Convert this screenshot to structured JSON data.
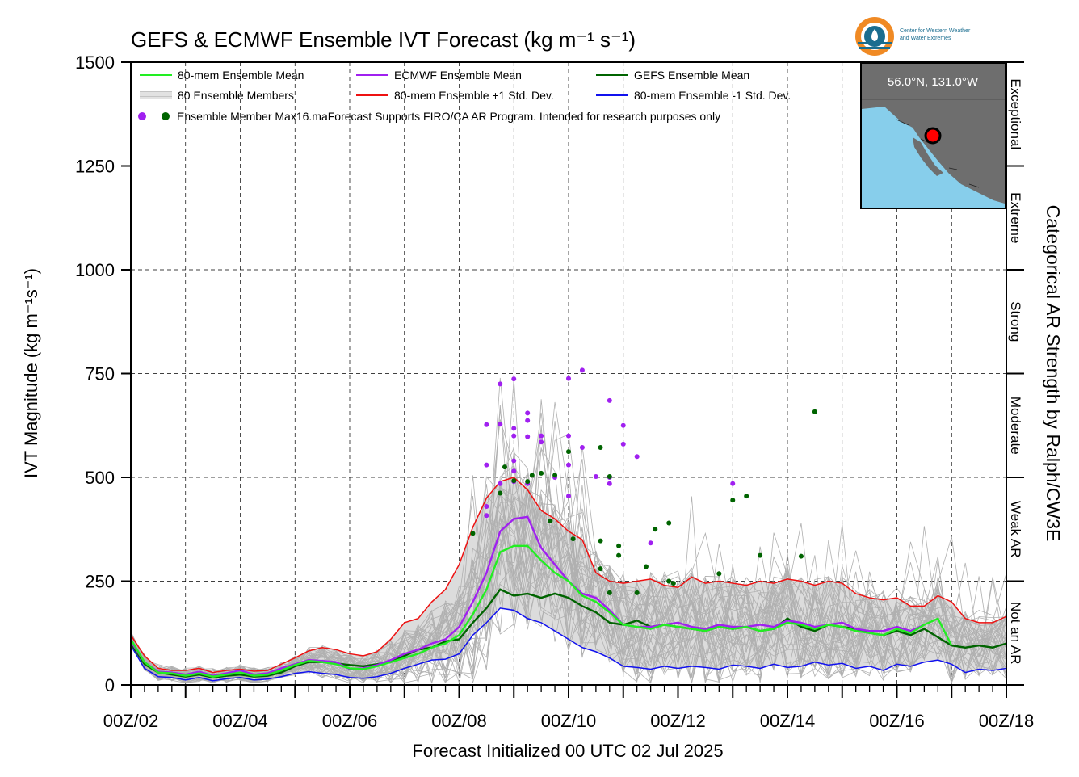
{
  "chart_data": {
    "type": "line",
    "title": "GEFS & ECMWF Ensemble IVT Forecast (kg m⁻¹ s⁻¹)",
    "xlabel": "Forecast Initialized 00 UTC 02 Jul 2025",
    "ylabel": "IVT Magnitude (kg m⁻¹s⁻¹)",
    "ylim": [
      0,
      1500
    ],
    "xlim": [
      0,
      384
    ],
    "x_unit": "forecast hour from 00Z/02",
    "yticks": [
      "0",
      "250",
      "500",
      "750",
      "1000",
      "1250",
      "1500"
    ],
    "xticks": [
      "00Z/02",
      "00Z/04",
      "00Z/06",
      "00Z/08",
      "00Z/10",
      "00Z/12",
      "00Z/14",
      "00Z/16",
      "00Z/18"
    ],
    "grid": true,
    "legend_position": "top-left",
    "legend": [
      {
        "label": "80-mem Ensemble Mean",
        "color": "#22ee22",
        "kind": "line"
      },
      {
        "label": "ECMWF Ensemble Mean",
        "color": "#a020f0",
        "kind": "line"
      },
      {
        "label": "GEFS Ensemble Mean",
        "color": "#006400",
        "kind": "line"
      },
      {
        "label": "80 Ensemble Members",
        "color": "#b0b0b0",
        "kind": "multiline"
      },
      {
        "label": "80-mem Ensemble +1 Std. Dev.",
        "color": "#ee1111",
        "kind": "line"
      },
      {
        "label": "80-mem Ensemble -1 Std. Dev.",
        "color": "#1111ee",
        "kind": "line"
      }
    ],
    "legend_dots_label": "Ensemble Member Max",
    "note": "16.maForecast Supports FIRO/CA AR Program. Intended for research purposes only",
    "category_title": "Categorical AR Strength by Ralph/CW3E",
    "categories": [
      {
        "label": "Not an AR",
        "range": [
          0,
          250
        ]
      },
      {
        "label": "Weak AR",
        "range": [
          250,
          500
        ]
      },
      {
        "label": "Moderate",
        "range": [
          500,
          750
        ]
      },
      {
        "label": "Strong",
        "range": [
          750,
          1000
        ]
      },
      {
        "label": "Extreme",
        "range": [
          1000,
          1250
        ]
      },
      {
        "label": "Exceptional",
        "range": [
          1250,
          1500
        ]
      }
    ],
    "inset_label": "56.0°N, 131.0°W",
    "logo_text": [
      "Center for Western Weather",
      "and Water Extremes"
    ],
    "series": [
      {
        "name": "80-mem Ensemble Mean",
        "color": "#22ee22",
        "x": [
          0,
          6,
          12,
          18,
          24,
          30,
          36,
          42,
          48,
          54,
          60,
          66,
          72,
          78,
          84,
          90,
          96,
          102,
          108,
          114,
          120,
          126,
          132,
          138,
          144,
          150,
          156,
          162,
          168,
          174,
          180,
          186,
          192,
          198,
          204,
          210,
          216,
          222,
          228,
          234,
          240,
          246,
          252,
          258,
          264,
          270,
          276,
          282,
          288,
          294,
          300,
          306,
          312,
          318,
          324,
          330,
          336,
          342,
          348,
          354,
          360
        ],
        "y": [
          110,
          55,
          30,
          28,
          22,
          28,
          20,
          25,
          30,
          22,
          25,
          35,
          48,
          58,
          55,
          50,
          40,
          38,
          45,
          55,
          65,
          75,
          90,
          100,
          120,
          170,
          230,
          320,
          335,
          335,
          300,
          270,
          250,
          215,
          200,
          175,
          145,
          140,
          135,
          145,
          140,
          135,
          130,
          140,
          135,
          140,
          130,
          135,
          150,
          145,
          135,
          145,
          140,
          130,
          125,
          120,
          135,
          125,
          145,
          160,
          95
        ]
      },
      {
        "name": "ECMWF Ensemble Mean",
        "color": "#a020f0",
        "x": [
          0,
          6,
          12,
          18,
          24,
          30,
          36,
          42,
          48,
          54,
          60,
          66,
          72,
          78,
          84,
          90,
          96,
          102,
          108,
          114,
          120,
          126,
          132,
          138,
          144,
          150,
          156,
          162,
          168,
          174,
          180,
          186,
          192,
          198,
          204,
          210,
          216,
          222,
          228,
          234,
          240,
          246,
          252,
          258,
          264,
          270,
          276,
          282,
          288,
          294,
          300,
          306,
          312,
          318,
          324,
          330,
          336,
          342,
          348
        ],
        "y": [
          105,
          55,
          32,
          30,
          25,
          32,
          22,
          28,
          35,
          25,
          28,
          40,
          50,
          60,
          58,
          55,
          38,
          40,
          48,
          60,
          75,
          85,
          100,
          110,
          140,
          200,
          270,
          370,
          400,
          405,
          330,
          290,
          250,
          220,
          210,
          180,
          145,
          140,
          140,
          145,
          150,
          140,
          135,
          145,
          140,
          140,
          145,
          140,
          155,
          150,
          140,
          145,
          150,
          135,
          130,
          130,
          140,
          130,
          145
        ]
      },
      {
        "name": "GEFS Ensemble Mean",
        "color": "#006400",
        "x": [
          0,
          6,
          12,
          18,
          24,
          30,
          36,
          42,
          48,
          54,
          60,
          66,
          72,
          78,
          84,
          90,
          96,
          102,
          108,
          114,
          120,
          126,
          132,
          138,
          144,
          150,
          156,
          162,
          168,
          174,
          180,
          186,
          192,
          198,
          204,
          210,
          216,
          222,
          228,
          234,
          240,
          246,
          252,
          258,
          264,
          270,
          276,
          282,
          288,
          294,
          300,
          306,
          312,
          318,
          324,
          330,
          336,
          342,
          348,
          360,
          366,
          372,
          378,
          384
        ],
        "y": [
          100,
          50,
          30,
          25,
          20,
          25,
          18,
          22,
          25,
          20,
          22,
          30,
          45,
          55,
          55,
          52,
          48,
          45,
          50,
          55,
          70,
          85,
          90,
          105,
          110,
          150,
          185,
          230,
          215,
          220,
          210,
          220,
          210,
          190,
          175,
          150,
          145,
          155,
          140,
          145,
          140,
          135,
          130,
          140,
          135,
          140,
          130,
          135,
          160,
          140,
          130,
          145,
          140,
          135,
          125,
          120,
          130,
          120,
          135,
          95,
          90,
          95,
          90,
          100
        ]
      },
      {
        "name": "80-mem Ensemble +1 Std. Dev.",
        "color": "#ee1111",
        "x": [
          0,
          6,
          12,
          18,
          24,
          30,
          36,
          42,
          48,
          54,
          60,
          66,
          72,
          78,
          84,
          90,
          96,
          102,
          108,
          114,
          120,
          126,
          132,
          138,
          144,
          150,
          156,
          162,
          168,
          174,
          180,
          186,
          192,
          198,
          204,
          210,
          216,
          222,
          228,
          234,
          240,
          246,
          252,
          258,
          264,
          270,
          276,
          282,
          288,
          294,
          300,
          306,
          312,
          318,
          324,
          330,
          336,
          342,
          348,
          354,
          360,
          366,
          372,
          378,
          384
        ],
        "y": [
          120,
          70,
          40,
          35,
          35,
          40,
          30,
          35,
          38,
          33,
          35,
          50,
          65,
          82,
          90,
          85,
          75,
          70,
          80,
          110,
          150,
          160,
          200,
          230,
          290,
          380,
          450,
          490,
          500,
          470,
          420,
          400,
          370,
          350,
          270,
          250,
          245,
          250,
          255,
          240,
          235,
          260,
          245,
          250,
          245,
          240,
          250,
          245,
          255,
          250,
          240,
          250,
          245,
          220,
          210,
          205,
          210,
          190,
          190,
          215,
          200,
          160,
          150,
          150,
          165
        ]
      },
      {
        "name": "80-mem Ensemble -1 Std. Dev.",
        "color": "#1111ee",
        "x": [
          0,
          6,
          12,
          18,
          24,
          30,
          36,
          42,
          48,
          54,
          60,
          66,
          72,
          78,
          84,
          90,
          96,
          102,
          108,
          114,
          120,
          126,
          132,
          138,
          144,
          150,
          156,
          162,
          168,
          174,
          180,
          186,
          192,
          198,
          204,
          210,
          216,
          222,
          228,
          234,
          240,
          246,
          252,
          258,
          264,
          270,
          276,
          282,
          288,
          294,
          300,
          306,
          312,
          318,
          324,
          330,
          336,
          342,
          348,
          354,
          360,
          366,
          372,
          378,
          384
        ],
        "y": [
          95,
          40,
          20,
          18,
          12,
          18,
          10,
          15,
          18,
          12,
          14,
          20,
          28,
          32,
          28,
          25,
          18,
          16,
          20,
          28,
          40,
          50,
          60,
          62,
          75,
          120,
          150,
          185,
          180,
          160,
          150,
          130,
          110,
          90,
          80,
          65,
          45,
          42,
          38,
          45,
          40,
          45,
          42,
          38,
          48,
          45,
          40,
          50,
          42,
          45,
          55,
          48,
          52,
          40,
          45,
          35,
          50,
          45,
          55,
          60,
          50,
          30,
          38,
          35,
          40
        ]
      }
    ],
    "member_max_points": {
      "ecmwf_color": "#a020f0",
      "gefs_color": "#006400",
      "ecmwf": [
        {
          "x": 162,
          "y": 725
        },
        {
          "x": 168,
          "y": 737
        },
        {
          "x": 162,
          "y": 628
        },
        {
          "x": 156,
          "y": 627
        },
        {
          "x": 156,
          "y": 530
        },
        {
          "x": 156,
          "y": 430
        },
        {
          "x": 156,
          "y": 408
        },
        {
          "x": 168,
          "y": 618
        },
        {
          "x": 168,
          "y": 600
        },
        {
          "x": 168,
          "y": 540
        },
        {
          "x": 168,
          "y": 515
        },
        {
          "x": 174,
          "y": 655
        },
        {
          "x": 174,
          "y": 637
        },
        {
          "x": 174,
          "y": 598
        },
        {
          "x": 174,
          "y": 485
        },
        {
          "x": 180,
          "y": 600
        },
        {
          "x": 180,
          "y": 585
        },
        {
          "x": 186,
          "y": 500
        },
        {
          "x": 192,
          "y": 738
        },
        {
          "x": 192,
          "y": 600
        },
        {
          "x": 192,
          "y": 530
        },
        {
          "x": 192,
          "y": 455
        },
        {
          "x": 198,
          "y": 758
        },
        {
          "x": 198,
          "y": 572
        },
        {
          "x": 204,
          "y": 502
        },
        {
          "x": 210,
          "y": 685
        },
        {
          "x": 210,
          "y": 500
        },
        {
          "x": 210,
          "y": 485
        },
        {
          "x": 216,
          "y": 625
        },
        {
          "x": 216,
          "y": 580
        },
        {
          "x": 222,
          "y": 550
        },
        {
          "x": 228,
          "y": 342
        },
        {
          "x": 264,
          "y": 485
        },
        {
          "x": 162,
          "y": 485
        },
        {
          "x": 168,
          "y": 490
        }
      ],
      "gefs": [
        {
          "x": 150,
          "y": 365
        },
        {
          "x": 162,
          "y": 462
        },
        {
          "x": 164,
          "y": 525
        },
        {
          "x": 168,
          "y": 492
        },
        {
          "x": 174,
          "y": 490
        },
        {
          "x": 176,
          "y": 505
        },
        {
          "x": 180,
          "y": 510
        },
        {
          "x": 184,
          "y": 395
        },
        {
          "x": 186,
          "y": 505
        },
        {
          "x": 192,
          "y": 562
        },
        {
          "x": 194,
          "y": 352
        },
        {
          "x": 206,
          "y": 572
        },
        {
          "x": 206,
          "y": 347
        },
        {
          "x": 210,
          "y": 502
        },
        {
          "x": 214,
          "y": 335
        },
        {
          "x": 214,
          "y": 312
        },
        {
          "x": 206,
          "y": 280
        },
        {
          "x": 210,
          "y": 222
        },
        {
          "x": 222,
          "y": 222
        },
        {
          "x": 226,
          "y": 285
        },
        {
          "x": 230,
          "y": 375
        },
        {
          "x": 236,
          "y": 390
        },
        {
          "x": 236,
          "y": 250
        },
        {
          "x": 238,
          "y": 245
        },
        {
          "x": 258,
          "y": 268
        },
        {
          "x": 264,
          "y": 445
        },
        {
          "x": 270,
          "y": 455
        },
        {
          "x": 276,
          "y": 312
        },
        {
          "x": 294,
          "y": 310
        },
        {
          "x": 300,
          "y": 658
        }
      ]
    }
  }
}
